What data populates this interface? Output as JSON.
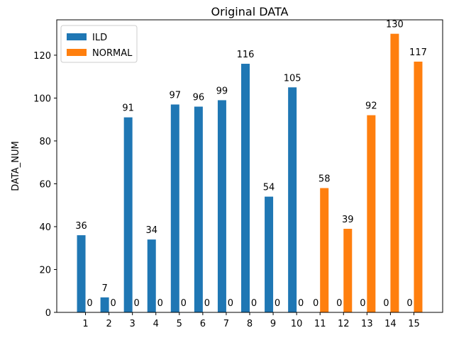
{
  "chart_data": {
    "type": "bar",
    "title": "Original DATA",
    "xlabel": "",
    "ylabel": "DATA_NUM",
    "categories": [
      "1",
      "2",
      "3",
      "4",
      "5",
      "6",
      "7",
      "8",
      "9",
      "10",
      "11",
      "12",
      "13",
      "14",
      "15"
    ],
    "series": [
      {
        "name": "ILD",
        "color": "#1f77b4",
        "values": [
          36,
          7,
          91,
          34,
          97,
          96,
          99,
          116,
          54,
          105,
          0,
          0,
          0,
          0,
          0
        ]
      },
      {
        "name": "NORMAL",
        "color": "#ff7f0e",
        "values": [
          0,
          0,
          0,
          0,
          0,
          0,
          0,
          0,
          0,
          0,
          58,
          39,
          92,
          130,
          117
        ]
      }
    ],
    "ylim": [
      0,
      136.5
    ],
    "yticks": [
      0,
      20,
      40,
      60,
      80,
      100,
      120
    ],
    "grid": false,
    "legend_position": "top-left",
    "data_labels": true
  }
}
